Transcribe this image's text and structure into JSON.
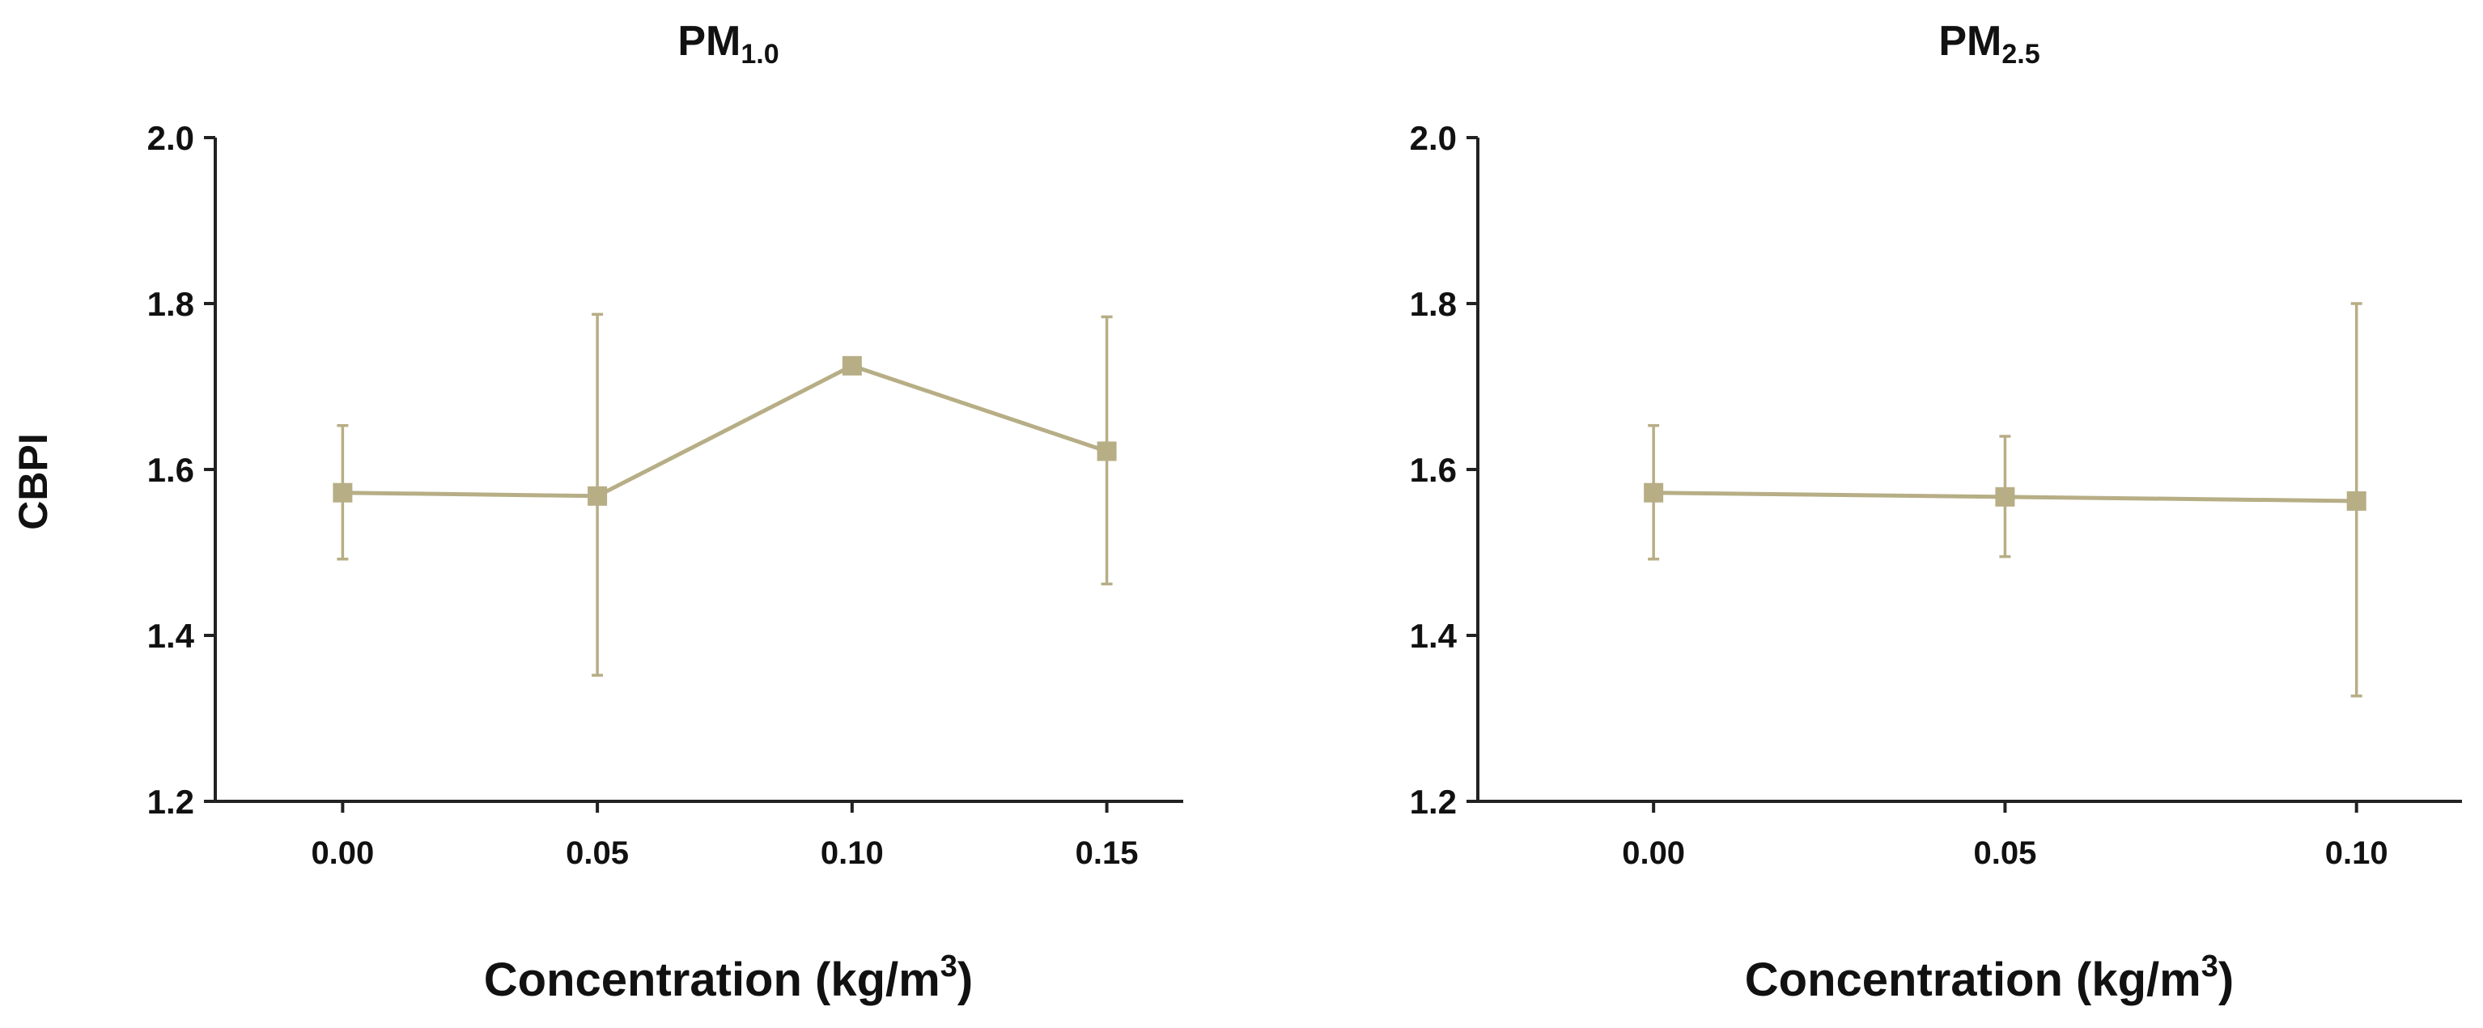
{
  "figure": {
    "shared_ylabel": "CBPI",
    "series_color": "#b7ae86"
  },
  "chart_data": [
    {
      "type": "line",
      "title_main": "PM",
      "title_sub": "1.0",
      "xlabel_main": "Concentration (kg/m",
      "xlabel_sup": "3",
      "xlabel_end": ")",
      "ylabel": "CBPI",
      "ylim": [
        1.2,
        2.0
      ],
      "yticks": [
        "1.2",
        "1.4",
        "1.6",
        "1.8",
        "2.0"
      ],
      "xlim": [
        -0.025,
        0.165
      ],
      "xticks": [
        "0.00",
        "0.05",
        "0.10",
        "0.15"
      ],
      "series": [
        {
          "name": "PM1.0",
          "x": [
            0.0,
            0.05,
            0.1,
            0.15
          ],
          "y": [
            1.572,
            1.568,
            1.725,
            1.622
          ],
          "err_low": [
            1.492,
            1.352,
            1.722,
            1.462
          ],
          "err_high": [
            1.653,
            1.787,
            1.728,
            1.784
          ]
        }
      ]
    },
    {
      "type": "line",
      "title_main": "PM",
      "title_sub": "2.5",
      "xlabel_main": "Concentration (kg/m",
      "xlabel_sup": "3",
      "xlabel_end": ")",
      "ylabel": "",
      "ylim": [
        1.2,
        2.0
      ],
      "yticks": [
        "1.2",
        "1.4",
        "1.6",
        "1.8",
        "2.0"
      ],
      "xlim": [
        -0.025,
        0.115
      ],
      "xticks": [
        "0.00",
        "0.05",
        "0.10"
      ],
      "series": [
        {
          "name": "PM2.5",
          "x": [
            0.0,
            0.05,
            0.1
          ],
          "y": [
            1.572,
            1.567,
            1.562
          ],
          "err_low": [
            1.492,
            1.495,
            1.327
          ],
          "err_high": [
            1.653,
            1.64,
            1.8
          ]
        }
      ]
    }
  ]
}
